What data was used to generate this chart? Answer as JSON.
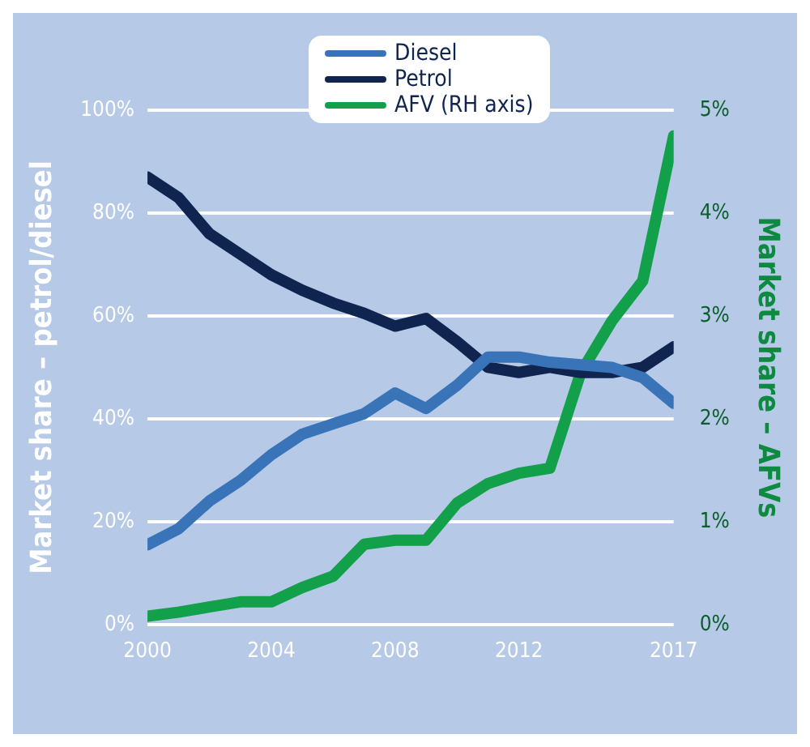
{
  "chart_data": {
    "type": "line",
    "ylabel": "Market share – petrol/diesel",
    "y2label": "Market share – AFVs",
    "x": [
      2000,
      2001,
      2002,
      2003,
      2004,
      2005,
      2006,
      2007,
      2008,
      2009,
      2010,
      2011,
      2012,
      2013,
      2014,
      2015,
      2016,
      2017
    ],
    "xlim": [
      2000,
      2017
    ],
    "xticks": [
      2000,
      2004,
      2008,
      2012,
      2017
    ],
    "ylim": [
      0,
      100
    ],
    "yticks": [
      {
        "value": 0,
        "label": "0%"
      },
      {
        "value": 20,
        "label": "20%"
      },
      {
        "value": 40,
        "label": "40%"
      },
      {
        "value": 60,
        "label": "60%"
      },
      {
        "value": 80,
        "label": "80%"
      },
      {
        "value": 100,
        "label": "100%"
      }
    ],
    "y2lim": [
      0,
      5
    ],
    "y2ticks": [
      {
        "value": 0,
        "label": "0%"
      },
      {
        "value": 1,
        "label": "1%"
      },
      {
        "value": 2,
        "label": "2%"
      },
      {
        "value": 3,
        "label": "3%"
      },
      {
        "value": 4,
        "label": "4%"
      },
      {
        "value": 5,
        "label": "5%"
      }
    ],
    "series": [
      {
        "name": "Diesel",
        "color": "#3a74b8",
        "values": [
          15.5,
          18.6,
          24,
          28,
          33,
          37,
          39,
          41,
          45,
          42,
          46.5,
          52,
          52,
          51,
          50.5,
          50,
          48,
          43
        ]
      },
      {
        "name": "Petrol",
        "color": "#0f2550",
        "values": [
          87,
          83,
          76,
          72,
          68,
          65,
          62.5,
          60.5,
          58,
          59.5,
          55,
          50,
          49,
          50,
          49,
          49,
          50,
          54
        ]
      },
      {
        "name": "AFV (RH axis)",
        "color": "#12a04a",
        "axis": "y2",
        "values": [
          0.08,
          0.12,
          0.17,
          0.22,
          0.22,
          0.36,
          0.47,
          0.78,
          0.82,
          0.82,
          1.18,
          1.37,
          1.47,
          1.52,
          2.45,
          2.95,
          3.34,
          4.75
        ]
      }
    ],
    "grid": "y",
    "legend": "top",
    "marker": "none",
    "line_style": "solid"
  }
}
